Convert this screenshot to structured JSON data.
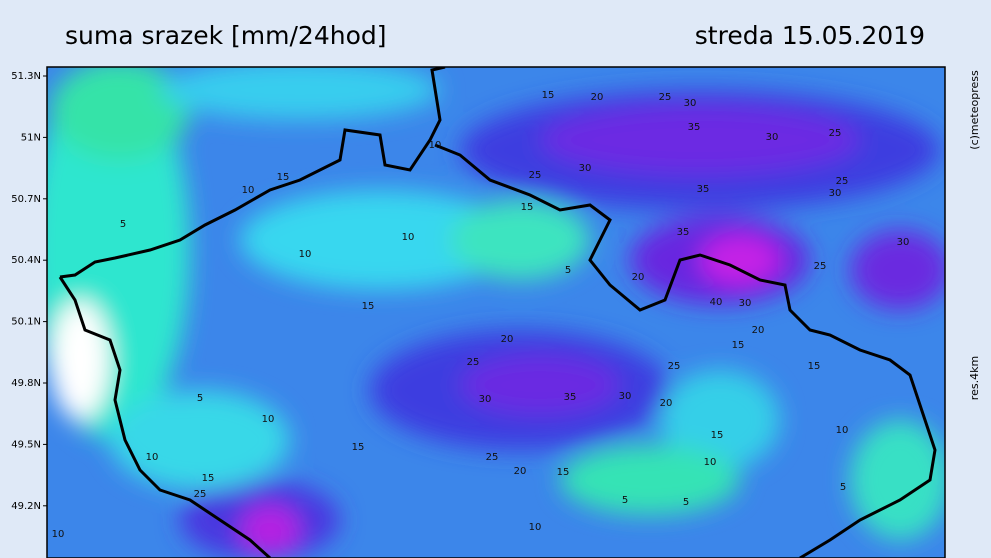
{
  "header": {
    "title": "suma srazek [mm/24hod]",
    "date": "streda 15.05.2019"
  },
  "latitude_labels": [
    "51.3N",
    "51N",
    "50.7N",
    "50.4N",
    "50.1N",
    "49.8N",
    "49.5N",
    "49.2N"
  ],
  "side": {
    "copyright": "(c)meteopress",
    "resolution": "res.4km"
  },
  "contour_labels": [
    15,
    20,
    25,
    30,
    35,
    30,
    25,
    15,
    10,
    5,
    10,
    10,
    25,
    15,
    35,
    30,
    35,
    30,
    25,
    30,
    25,
    20,
    5,
    40,
    30,
    20,
    15,
    15,
    20,
    25,
    30,
    35,
    30,
    25,
    20,
    15,
    5,
    10,
    15,
    10,
    15,
    10,
    10,
    25,
    20,
    15,
    15,
    25,
    5,
    5,
    10,
    10,
    5,
    10
  ]
}
